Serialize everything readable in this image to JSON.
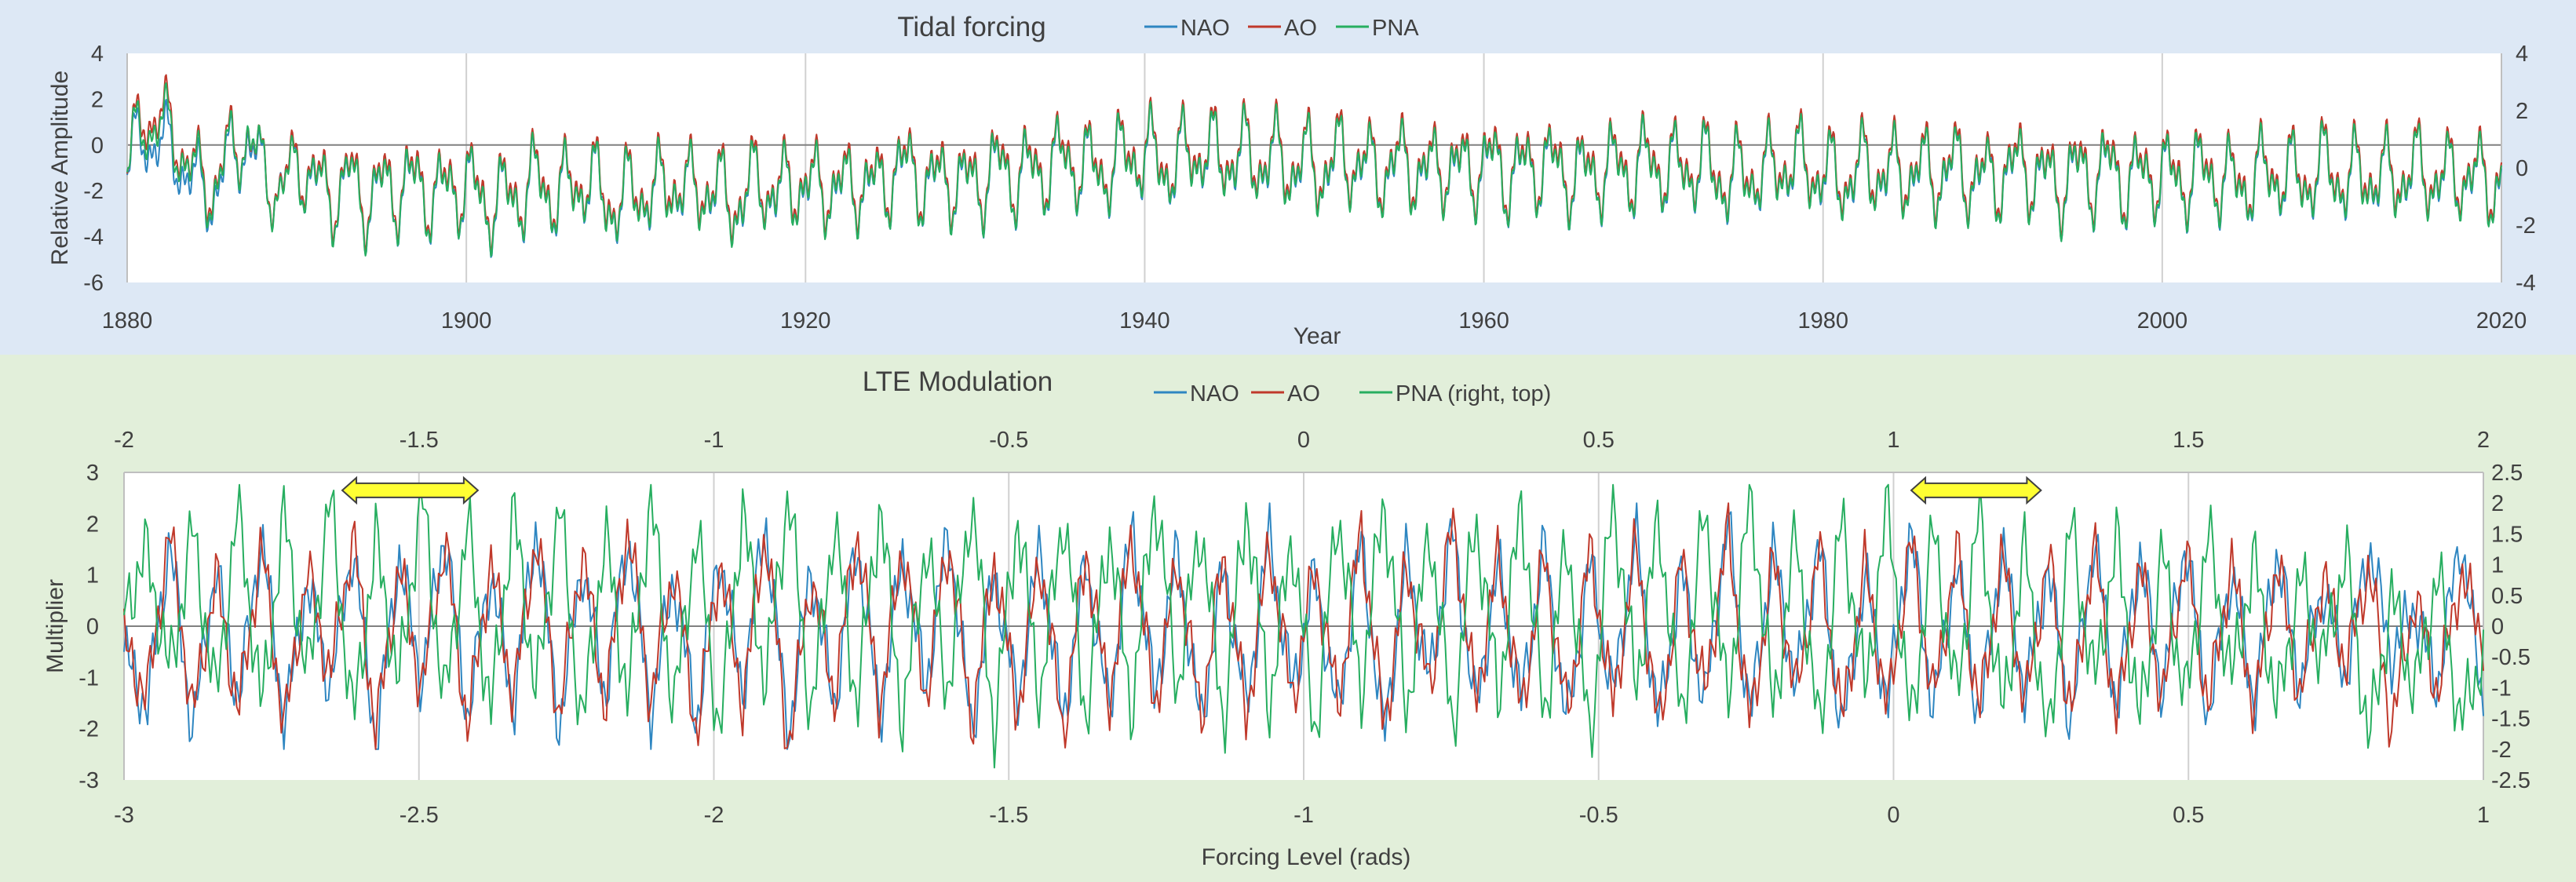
{
  "colors": {
    "top_background": "#dde8f5",
    "bottom_background": "#e2efda",
    "plot_background": "#ffffff",
    "nao": "#2e86c1",
    "ao": "#c0392b",
    "pna": "#27ae60",
    "arrow_fill": "#ffff33",
    "arrow_stroke": "#404040"
  },
  "chart_data": [
    {
      "id": "tidal-forcing",
      "type": "line",
      "title": "Tidal forcing",
      "xlabel": "Year",
      "ylabel": "Relative Amplitude",
      "xlim": [
        1880,
        2020
      ],
      "ylim": [
        -6,
        4
      ],
      "ylim_right": [
        -4,
        4
      ],
      "x_ticks": [
        1880,
        1900,
        1920,
        1940,
        1960,
        1980,
        2000,
        2020
      ],
      "y_ticks": [
        -6,
        -4,
        -2,
        0,
        2,
        4
      ],
      "y_ticks_right": [
        -4,
        -2,
        0,
        2,
        4
      ],
      "legend": [
        "NAO",
        "AO",
        "PNA"
      ],
      "legend_position": "top",
      "grid": "vertical",
      "series": [
        {
          "name": "NAO",
          "values": [
            -1.0,
            0.4,
            0.0,
            -0.6,
            -1.8,
            -2.2,
            -0.6,
            0.2,
            -1.4,
            -1.9,
            -0.8,
            -1.6,
            -2.4,
            -1.4,
            -2.6,
            -1.8,
            -2.0,
            -1.6,
            -2.4,
            -1.8,
            -1.8,
            -2.6,
            -2.4,
            -2.2,
            -1.6,
            -2.2,
            -2.0,
            -1.4,
            -2.6,
            -2.4,
            -2.0,
            -2.2,
            -1.6,
            -2.2,
            -1.8,
            -2.4,
            -2.6,
            -1.4,
            -2.4,
            -1.6,
            -2.0,
            -1.8,
            -2.0,
            -1.6,
            -2.0,
            -1.0,
            -1.2,
            -1.8,
            -1.4,
            -1.8,
            -1.6,
            -1.0,
            -1.4,
            -1.2,
            -1.0,
            -0.6,
            -1.0,
            -1.2,
            -0.8,
            -0.4,
            -0.6,
            -1.0,
            -0.6,
            -0.2,
            -0.8,
            -0.4,
            -0.8,
            -0.6,
            -1.0,
            -0.8,
            -1.2,
            -0.6,
            -0.8,
            -1.2,
            -1.0,
            -0.8,
            -1.4,
            -0.8,
            -1.2,
            -1.0,
            -0.8,
            -1.4,
            -1.0,
            -0.8,
            -1.2,
            -1.4,
            -1.2,
            -1.0,
            -1.2,
            -0.8,
            -1.0,
            -1.2,
            -0.8,
            -1.4,
            -1.6,
            -1.2,
            -1.4,
            -0.8,
            -1.0,
            -1.2,
            -1.6,
            -1.4,
            -1.0,
            -1.4,
            -1.2,
            -1.2,
            -1.4,
            -1.0,
            -1.4,
            -1.6,
            -1.2,
            -1.0,
            -1.4,
            -1.8,
            -1.2,
            -1.4,
            -1.0,
            -1.6,
            -1.4,
            -1.2,
            -1.6,
            -1.4,
            -1.2,
            -1.8,
            -1.6,
            -1.4,
            -1.2,
            -1.6,
            -1.4,
            -1.0,
            -1.8,
            -1.2,
            -1.6,
            -1.4,
            -1.2,
            -1.4,
            -1.6,
            -1.2,
            -1.8,
            -1.4
          ]
        },
        {
          "name": "AO",
          "values": [
            -1.0,
            1.4,
            1.2,
            0.2,
            -1.2,
            -1.8,
            -0.2,
            0.4,
            -1.2,
            -2.0,
            -0.6,
            -1.4,
            -2.2,
            -1.2,
            -2.4,
            -1.6,
            -1.8,
            -1.4,
            -2.2,
            -1.6,
            -1.6,
            -2.4,
            -2.2,
            -2.0,
            -1.4,
            -2.0,
            -1.8,
            -1.2,
            -2.4,
            -2.2,
            -1.8,
            -2.0,
            -1.4,
            -2.0,
            -1.6,
            -2.2,
            -2.4,
            -1.2,
            -2.2,
            -1.4,
            -1.8,
            -1.6,
            -1.8,
            -1.4,
            -1.8,
            -0.8,
            -1.0,
            -1.6,
            -1.2,
            -1.6,
            -1.4,
            -0.8,
            -1.2,
            -1.0,
            -0.8,
            -0.4,
            -0.8,
            -1.0,
            -0.6,
            -0.2,
            -0.4,
            -0.8,
            -0.4,
            0.0,
            -0.6,
            -0.2,
            -0.6,
            -0.4,
            -0.8,
            -0.6,
            -1.0,
            -0.4,
            -0.6,
            -1.0,
            -0.8,
            -0.6,
            -1.2,
            -0.6,
            -1.0,
            -0.8,
            -0.6,
            -1.2,
            -0.8,
            -0.6,
            -1.0,
            -1.2,
            -1.0,
            -0.8,
            -1.0,
            -0.6,
            -0.8,
            -1.0,
            -0.6,
            -1.2,
            -1.4,
            -1.0,
            -1.2,
            -0.6,
            -0.8,
            -1.0,
            -1.4,
            -1.2,
            -0.8,
            -1.2,
            -1.0,
            -1.0,
            -1.2,
            -0.8,
            -1.2,
            -1.4,
            -1.0,
            -0.8,
            -1.2,
            -1.6,
            -1.0,
            -1.2,
            -0.8,
            -1.4,
            -1.2,
            -1.0,
            -1.4,
            -1.2,
            -1.0,
            -1.6,
            -1.4,
            -1.2,
            -1.0,
            -1.4,
            -1.2,
            -0.8,
            -1.6,
            -1.0,
            -1.4,
            -1.2,
            -1.0,
            -1.2,
            -1.4,
            -1.0,
            -1.6,
            -1.2
          ]
        },
        {
          "name": "PNA",
          "values": [
            -1.0,
            1.0,
            0.8,
            0.0,
            -1.4,
            -2.0,
            -0.4,
            0.4,
            -1.2,
            -2.2,
            -0.8,
            -1.6,
            -2.4,
            -1.4,
            -2.6,
            -1.8,
            -2.0,
            -1.6,
            -2.4,
            -1.8,
            -1.8,
            -2.6,
            -2.4,
            -2.2,
            -1.6,
            -2.2,
            -2.0,
            -1.4,
            -2.6,
            -2.4,
            -2.0,
            -2.2,
            -1.6,
            -2.2,
            -1.8,
            -2.4,
            -2.6,
            -1.4,
            -2.4,
            -1.6,
            -2.0,
            -1.8,
            -2.0,
            -1.6,
            -2.0,
            -1.0,
            -1.2,
            -1.8,
            -1.4,
            -1.8,
            -1.6,
            -1.0,
            -1.4,
            -1.2,
            -1.0,
            -0.6,
            -1.0,
            -1.2,
            -0.8,
            -0.4,
            -0.6,
            -1.0,
            -0.6,
            -0.2,
            -0.8,
            -0.4,
            -0.8,
            -0.6,
            -1.0,
            -0.8,
            -1.2,
            -0.6,
            -0.8,
            -1.2,
            -1.0,
            -0.8,
            -1.4,
            -0.8,
            -1.2,
            -1.0,
            -0.8,
            -1.4,
            -1.0,
            -0.8,
            -1.2,
            -1.4,
            -1.2,
            -1.0,
            -1.2,
            -0.8,
            -1.0,
            -1.2,
            -0.8,
            -1.4,
            -1.6,
            -1.2,
            -1.4,
            -0.8,
            -1.0,
            -1.2,
            -1.6,
            -1.4,
            -1.0,
            -1.4,
            -1.2,
            -1.2,
            -1.4,
            -1.0,
            -1.4,
            -1.6,
            -1.2,
            -1.0,
            -1.4,
            -1.8,
            -1.2,
            -1.4,
            -1.0,
            -1.6,
            -1.4,
            -1.2,
            -1.6,
            -1.4,
            -1.2,
            -1.8,
            -1.6,
            -1.4,
            -1.2,
            -1.6,
            -1.4,
            -1.0,
            -1.8,
            -1.2,
            -1.6,
            -1.4,
            -1.2,
            -1.4,
            -1.6,
            -1.2,
            -1.8,
            -1.4
          ]
        }
      ]
    },
    {
      "id": "lte-modulation",
      "type": "line",
      "title": "LTE Modulation",
      "xlabel": "Forcing Level (rads)",
      "ylabel": "Multiplier",
      "xlim": [
        -3,
        1
      ],
      "xlim_top": [
        -2,
        2
      ],
      "ylim": [
        -3,
        3
      ],
      "ylim_right": [
        -2.5,
        2.5
      ],
      "x_ticks": [
        -3,
        -2.5,
        -2,
        -1.5,
        -1,
        -0.5,
        0,
        0.5,
        1
      ],
      "x_ticks_top": [
        -2,
        -1.5,
        -1,
        -0.5,
        0,
        0.5,
        1,
        1.5,
        2
      ],
      "y_ticks": [
        -3,
        -2,
        -1,
        0,
        1,
        2,
        3
      ],
      "y_ticks_right": [
        -2.5,
        -2,
        -1.5,
        -1,
        -0.5,
        0,
        0.5,
        1,
        1.5,
        2,
        2.5
      ],
      "legend": [
        "NAO",
        "AO",
        "PNA (right, top)"
      ],
      "legend_position": "top",
      "grid": "vertical",
      "annotations": [
        {
          "type": "double-arrow",
          "axis": "top",
          "from": -1.63,
          "to": -1.4,
          "y": 2.65
        },
        {
          "type": "double-arrow",
          "axis": "top",
          "from": 1.03,
          "to": 1.25,
          "y": 2.65
        }
      ],
      "series": [
        {
          "name": "NAO",
          "values": [
            -0.5,
            -1.6,
            1.7,
            -2.1,
            1.2,
            -1.5,
            1.8,
            -1.9,
            0.9,
            -1.2,
            1.6,
            -2.3,
            1.4,
            -1.1,
            1.9,
            -1.8,
            1.1,
            -1.6,
            2.0,
            -2.0,
            1.3,
            -1.4,
            1.8,
            -1.7,
            1.0,
            -1.9,
            1.5,
            -1.3,
            2.1,
            -2.2,
            1.2,
            -1.6,
            1.7,
            -1.8,
            1.4,
            -1.2,
            1.9,
            -2.1,
            1.1,
            -1.5,
            1.6,
            -1.9,
            1.3,
            -1.7,
            2.0,
            -1.4,
            1.5,
            -2.0,
            1.2,
            -1.6,
            1.8,
            -1.3,
            1.0,
            -1.8,
            1.7,
            -2.2,
            1.4,
            -1.1,
            1.9,
            -1.7,
            1.2,
            -1.5,
            1.6,
            -2.0,
            1.3,
            -1.4,
            1.8,
            -1.9,
            1.1,
            -1.6,
            2.1,
            -1.8,
            1.5,
            -1.2,
            1.7,
            -2.1,
            1.0,
            -1.5,
            1.9,
            -1.7,
            1.3,
            -1.9,
            1.6,
            -1.4,
            1.2,
            -2.0,
            1.8,
            -1.6,
            1.4,
            -1.3,
            1.7,
            -1.8,
            1.1,
            -1.5,
            1.5,
            -1.2,
            0.8,
            -1.0,
            1.6,
            -0.6,
            0.4,
            -1.2,
            1.8,
            -1.6
          ]
        },
        {
          "name": "AO",
          "values": [
            -0.3,
            -1.4,
            1.9,
            -1.8,
            1.0,
            -1.7,
            1.6,
            -2.0,
            1.1,
            -1.0,
            1.8,
            -2.1,
            1.2,
            -1.3,
            1.7,
            -2.0,
            1.3,
            -1.4,
            1.8,
            -1.8,
            1.5,
            -1.6,
            2.0,
            -1.5,
            1.2,
            -2.1,
            1.3,
            -1.5,
            1.9,
            -2.4,
            1.0,
            -1.4,
            1.9,
            -1.6,
            1.6,
            -1.4,
            1.7,
            -1.9,
            1.3,
            -1.7,
            1.4,
            -2.1,
            1.5,
            -1.5,
            1.8,
            -1.6,
            1.3,
            -1.8,
            1.4,
            -1.8,
            1.6,
            -1.5,
            1.2,
            -1.6,
            1.9,
            -2.0,
            1.2,
            -1.3,
            2.1,
            -1.5,
            1.4,
            -1.7,
            1.4,
            -1.8,
            1.5,
            -1.6,
            1.6,
            -2.1,
            1.3,
            -1.4,
            1.9,
            -2.0,
            1.3,
            -1.4,
            1.5,
            -1.9,
            1.2,
            -1.7,
            1.7,
            -1.5,
            1.5,
            -1.7,
            1.4,
            -1.6,
            1.4,
            -1.8,
            1.6,
            -1.8,
            1.2,
            -1.5,
            1.5,
            -1.6,
            1.3,
            -1.7,
            1.3,
            -1.4,
            1.0,
            -0.8,
            1.2,
            -2.0,
            0.6,
            -1.3,
            1.0,
            -0.2
          ]
        },
        {
          "name": "PNA (right, top)",
          "values": [
            0.3,
            1.2,
            -0.8,
            1.6,
            -1.2,
            2.0,
            -1.4,
            1.8,
            -0.9,
            2.1,
            -1.6,
            1.4,
            -1.0,
            2.2,
            -1.3,
            1.7,
            -1.5,
            1.9,
            -1.1,
            2.0,
            -1.7,
            1.5,
            -1.2,
            2.1,
            -1.4,
            1.6,
            -1.8,
            1.9,
            -1.0,
            2.2,
            -1.5,
            1.7,
            -1.3,
            2.0,
            -1.6,
            1.4,
            -1.1,
            2.1,
            -1.7,
            1.8,
            -1.2,
            1.9,
            -1.5,
            1.6,
            -1.4,
            2.2,
            -1.0,
            1.7,
            -1.6,
            2.0,
            -1.3,
            1.5,
            -1.8,
            1.9,
            -1.1,
            2.1,
            -1.4,
            1.6,
            -1.7,
            1.8,
            -1.2,
            2.0,
            -1.5,
            1.4,
            -1.9,
            2.1,
            -1.0,
            1.7,
            -1.6,
            1.9,
            -1.3,
            2.2,
            -1.4,
            1.5,
            -1.8,
            1.8,
            -1.1,
            2.0,
            -1.7,
            1.6,
            -1.2,
            1.9,
            -1.5,
            1.3,
            -2.0,
            1.7,
            -1.0,
            1.4,
            -1.6,
            1.2,
            -1.3,
            1.5,
            -0.9,
            1.1,
            -1.4,
            0.8,
            -0.6,
            1.2,
            -1.9,
            0.5,
            -1.1,
            0.9,
            -1.6,
            -0.4
          ]
        }
      ]
    }
  ]
}
